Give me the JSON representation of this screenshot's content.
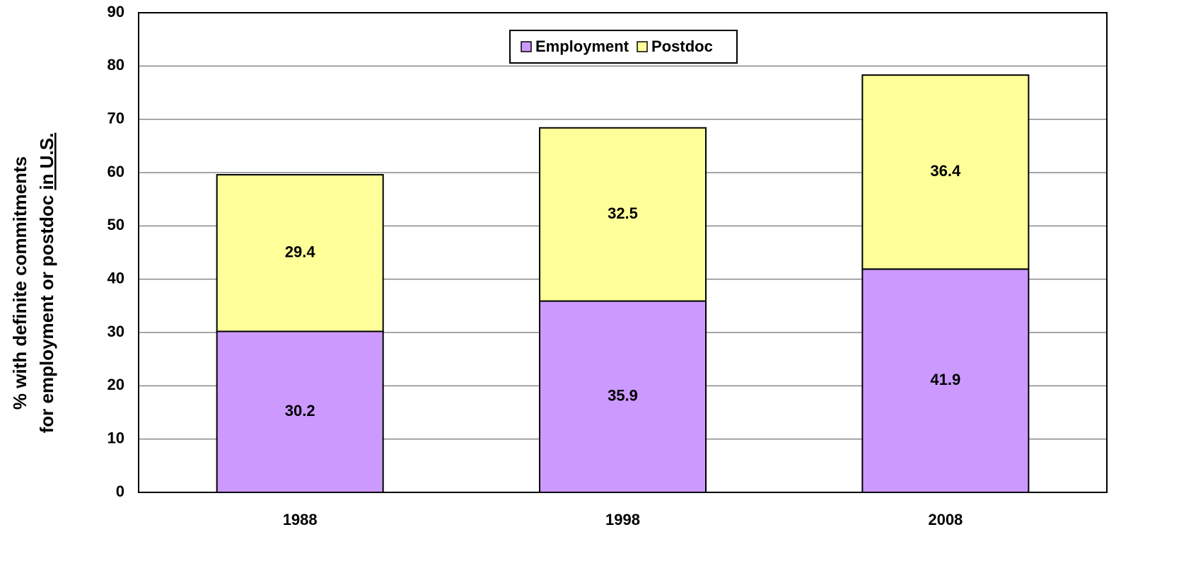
{
  "chart_data": {
    "type": "stacked_bar",
    "y_label": {
      "line1": "% with definite commitments",
      "line2": "for employment or postdoc",
      "line2_underlined": "in U.S."
    },
    "categories": [
      "1988",
      "1998",
      "2008"
    ],
    "series": [
      {
        "name": "Employment",
        "color": "#cc99ff",
        "values": [
          30.2,
          35.9,
          41.9
        ]
      },
      {
        "name": "Postdoc",
        "color": "#ffff99",
        "values": [
          29.4,
          32.5,
          36.4
        ]
      }
    ],
    "ylim": [
      0,
      90
    ],
    "yticks": [
      0,
      10,
      20,
      30,
      40,
      50,
      60,
      70,
      80,
      90
    ],
    "grid": true,
    "legend": "top"
  }
}
